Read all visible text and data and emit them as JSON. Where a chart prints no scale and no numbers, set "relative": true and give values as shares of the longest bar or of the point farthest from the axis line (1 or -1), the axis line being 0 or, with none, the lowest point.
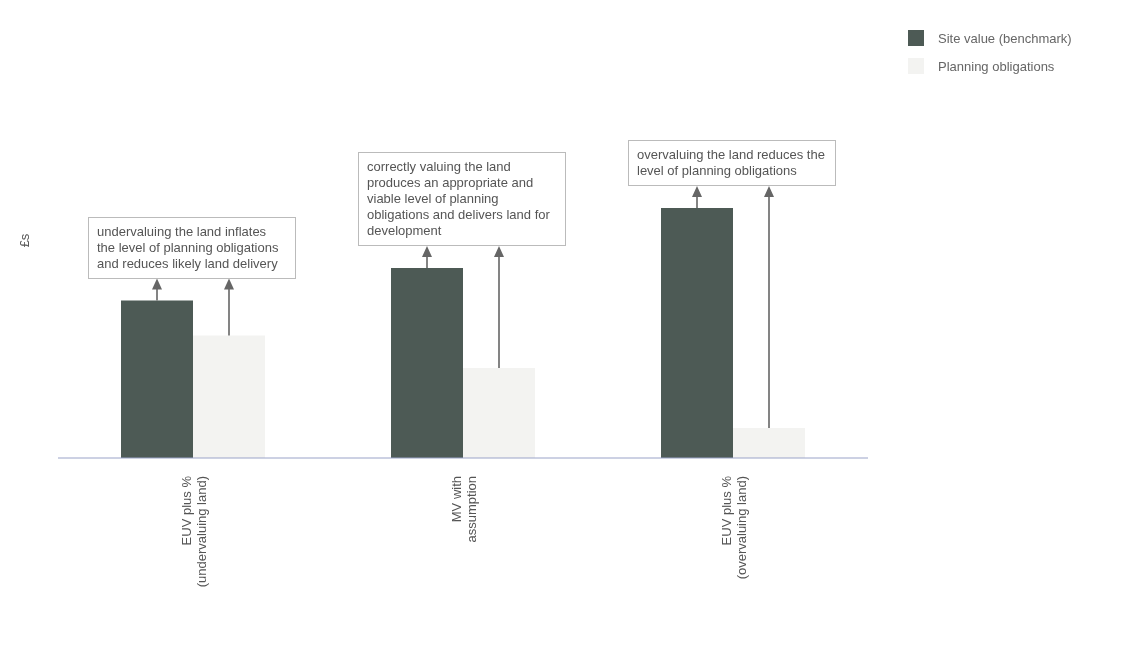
{
  "chart_data": {
    "type": "bar",
    "relative": true,
    "ylabel": "£s",
    "legend": "top right",
    "categories": [
      "EUV plus % (undervaluing land)",
      "MV with assumption",
      "EUV plus % (overvaluing land)"
    ],
    "series": [
      {
        "name": "Site value (benchmark)",
        "color": "#4d5a55",
        "values": [
          0.63,
          0.76,
          1
        ]
      },
      {
        "name": "Planning obligations",
        "color": "#f3f3f1",
        "values": [
          0.49,
          0.36,
          0.12
        ]
      }
    ],
    "annotations": [
      "undervaluing the land inflates the level of planning obligations and reduces likely land delivery",
      "correctly valuing the land produces an appropriate and viable level of planning obligations and delivers land for development",
      "overvaluing the land reduces the level of planning obligations"
    ]
  }
}
